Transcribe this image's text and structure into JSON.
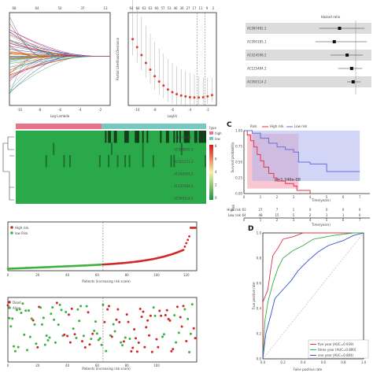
{
  "panel_letters": {
    "c": "C",
    "d": "D"
  },
  "lasso_coef": {
    "top_ticks": [
      "68",
      "64",
      "50",
      "37",
      "13"
    ],
    "bottom_ticks": [
      "-10",
      "-8",
      "-6",
      "-4",
      "-2"
    ],
    "xlabel": "Log Lambda"
  },
  "lasso_cv": {
    "top_ticks": [
      "64",
      "64",
      "63",
      "63",
      "60",
      "57",
      "53",
      "46",
      "36",
      "27",
      "17",
      "11",
      "9",
      "2"
    ],
    "bottom_ticks": [
      "-10",
      "-8",
      "-6",
      "-4",
      "-2"
    ],
    "ylabel": "Partial Likelihood Deviance",
    "xlabel": "Log(λ)"
  },
  "forest": {
    "title": "Hazard ratio",
    "rows": [
      "AC087482.2",
      "AC090185.1",
      "AC024598.2",
      "AC125484.2",
      "AC090114.2"
    ]
  },
  "heatmap": {
    "legend_title": "type",
    "legend_items": [
      "high",
      "low"
    ],
    "scale_ticks": [
      "8",
      "6",
      "4",
      "2",
      "0"
    ],
    "genes": [
      "LINC01929",
      "AC068920.1",
      "AC021171.2",
      "AC245041.2",
      "AC125484.2",
      "AC090114.2"
    ],
    "colors": {
      "high": "#e8748a",
      "low": "#77c8c0",
      "hot": "#d7191c",
      "cold": "#1a9641"
    }
  },
  "km": {
    "legend_title": "Risk",
    "legend_items": [
      "High risk",
      "Low risk"
    ],
    "pvalue": "p=1.346e-08",
    "ylabel": "Survival probability",
    "xlabel": "Time(years)",
    "xticks": [
      "0",
      "1",
      "2",
      "3",
      "4",
      "5",
      "6",
      "7"
    ],
    "yticks": [
      "0.00",
      "0.25",
      "0.50",
      "0.75",
      "1.00"
    ],
    "risk_table_title": "Risk",
    "risk_rows": [
      {
        "label": "High risk",
        "values": [
          "63",
          "27",
          "7",
          "1",
          "0",
          "0",
          "0",
          "0"
        ]
      },
      {
        "label": "Low risk",
        "values": [
          "64",
          "48",
          "15",
          "5",
          "2",
          "1",
          "1",
          "0"
        ]
      }
    ],
    "risk_xlabel": "Time(years)",
    "colors": {
      "high": "#e8334a",
      "low": "#6670d8"
    }
  },
  "risk_score": {
    "legend_items": [
      "High risk",
      "low Risk"
    ],
    "xlabel": "Patients (increasing risk score)",
    "xticks": [
      "0",
      "20",
      "40",
      "60",
      "80",
      "100",
      "120"
    ]
  },
  "survival_status": {
    "legend_items": [
      "Dead",
      "Alive"
    ],
    "xlabel": "Patients (increasing risk score)",
    "xticks": [
      "0",
      "20",
      "40",
      "60",
      "80",
      "100"
    ]
  },
  "roc": {
    "ylabel": "True positive rate",
    "xlabel": "False positive rate",
    "ticks": [
      "0.0",
      "0.2",
      "0.4",
      "0.6",
      "0.8",
      "1.0"
    ],
    "legend": [
      {
        "label": "five year (AUC=0.939)",
        "color": "#e0304a"
      },
      {
        "label": "three year (AUC=0.890)",
        "color": "#30b040"
      },
      {
        "label": "one year (AUC=0.804)",
        "color": "#3050d0"
      }
    ]
  },
  "chart_data": [
    {
      "type": "line",
      "title": "",
      "xlabel": "Log Lambda",
      "ylabel": "",
      "xlim": [
        -11,
        -1
      ],
      "note": "LASSO coefficient paths"
    },
    {
      "type": "line",
      "title": "",
      "xlabel": "Log(λ)",
      "ylabel": "Partial Likelihood Deviance",
      "xlim": [
        -11,
        -1
      ],
      "x": [
        -10.5,
        -10,
        -9.5,
        -9,
        -8.5,
        -8,
        -7.5,
        -7,
        -6.5,
        -6,
        -5.5,
        -5,
        -4.5,
        -4,
        -3.5,
        -3,
        -2.5,
        -2,
        -1.5
      ],
      "y": [
        14.0,
        13.4,
        12.8,
        12.2,
        11.7,
        11.2,
        10.8,
        10.5,
        10.2,
        10.0,
        9.85,
        9.75,
        9.68,
        9.62,
        9.6,
        9.6,
        9.62,
        9.68,
        9.78
      ]
    },
    {
      "type": "heatmap",
      "rows": [
        "LINC01929",
        "AC068920.1",
        "AC021171.2",
        "AC245041.2",
        "AC125484.2",
        "AC090114.2"
      ],
      "groups": [
        "high",
        "low"
      ]
    },
    {
      "type": "line",
      "title": "",
      "xlabel": "Time(years)",
      "ylabel": "Survival probability",
      "xlim": [
        0,
        7
      ],
      "ylim": [
        0,
        1
      ],
      "series": [
        {
          "name": "High risk",
          "x": [
            0,
            0.2,
            0.4,
            0.6,
            0.8,
            1.0,
            1.2,
            1.5,
            1.8,
            2.0,
            2.5,
            3.0,
            3.2,
            4.0
          ],
          "y": [
            1.0,
            0.93,
            0.84,
            0.74,
            0.62,
            0.52,
            0.42,
            0.32,
            0.25,
            0.2,
            0.16,
            0.12,
            0.05,
            0.0
          ]
        },
        {
          "name": "Low risk",
          "x": [
            0,
            0.5,
            1.0,
            1.5,
            2.0,
            2.5,
            3.0,
            3.3,
            4.0,
            5.0,
            6.0,
            7.0
          ],
          "y": [
            1.0,
            0.96,
            0.88,
            0.8,
            0.74,
            0.7,
            0.66,
            0.5,
            0.47,
            0.35,
            0.35,
            0.35
          ]
        }
      ]
    },
    {
      "type": "scatter",
      "xlabel": "Patients (increasing risk score)",
      "xlim": [
        0,
        127
      ],
      "ylim": [
        0,
        10
      ],
      "series": [
        {
          "name": "low Risk",
          "n": 64
        },
        {
          "name": "High risk",
          "n": 63
        }
      ],
      "cutoff_patient": 64
    },
    {
      "type": "scatter",
      "xlabel": "Patients (increasing risk score)",
      "xlim": [
        0,
        127
      ],
      "ylim": [
        0,
        8
      ],
      "series": [
        {
          "name": "Dead"
        },
        {
          "name": "Alive"
        }
      ],
      "cutoff_patient": 64
    },
    {
      "type": "line",
      "xlabel": "False positive rate",
      "ylabel": "True positive rate",
      "xlim": [
        0,
        1
      ],
      "ylim": [
        0,
        1
      ],
      "series": [
        {
          "name": "five year (AUC=0.939)",
          "x": [
            0,
            0,
            0.05,
            0.08,
            0.1,
            0.15,
            0.2,
            0.3,
            0.4,
            0.6,
            0.8,
            1.0
          ],
          "y": [
            0,
            0.45,
            0.55,
            0.72,
            0.82,
            0.88,
            0.95,
            0.97,
            1.0,
            1.0,
            1.0,
            1.0
          ]
        },
        {
          "name": "three year (AUC=0.890)",
          "x": [
            0,
            0.02,
            0.05,
            0.1,
            0.15,
            0.2,
            0.3,
            0.4,
            0.5,
            0.7,
            0.9,
            1.0
          ],
          "y": [
            0,
            0.3,
            0.45,
            0.6,
            0.72,
            0.8,
            0.86,
            0.9,
            0.95,
            0.98,
            1.0,
            1.0
          ]
        },
        {
          "name": "one year (AUC=0.804)",
          "x": [
            0,
            0.03,
            0.08,
            0.12,
            0.2,
            0.28,
            0.35,
            0.45,
            0.55,
            0.65,
            0.8,
            0.9,
            1.0
          ],
          "y": [
            0,
            0.2,
            0.35,
            0.48,
            0.55,
            0.62,
            0.7,
            0.78,
            0.85,
            0.9,
            0.94,
            0.98,
            1.0
          ]
        }
      ]
    }
  ]
}
